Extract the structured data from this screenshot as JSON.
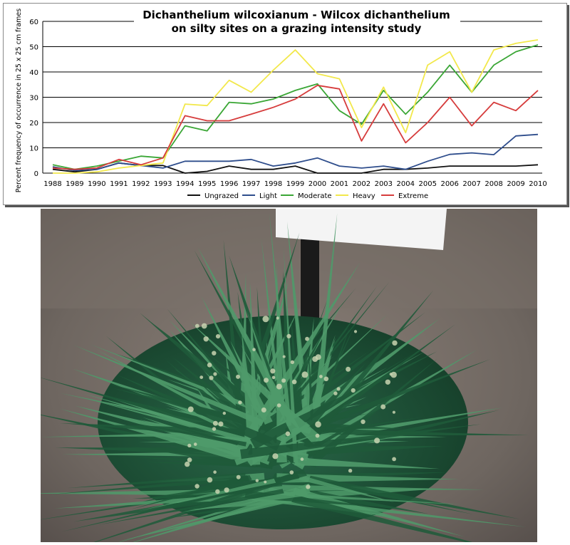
{
  "chart_data": {
    "type": "line",
    "title": "Dichanthelium wilcoxianum  -  Wilcox dichanthelium",
    "subtitle": "on silty sites on a grazing intensity study",
    "xlabel": "",
    "ylabel": "Percent frequency of occurrence in 25 x 25 cm frames",
    "ylim": [
      0,
      60
    ],
    "yticks": [
      0,
      10,
      20,
      30,
      40,
      50,
      60
    ],
    "grid": "horizontal",
    "legend_position": "bottom",
    "x": [
      "1988",
      "1989",
      "1990",
      "1991",
      "1992",
      "1993",
      "1994",
      "1995",
      "1996",
      "1997",
      "1998",
      "1999",
      "2000",
      "2001",
      "2002",
      "2003",
      "2004",
      "2005",
      "2006",
      "2007",
      "2008",
      "2009",
      "2010"
    ],
    "series": [
      {
        "name": "Ungrazed",
        "color": "#111111",
        "values": [
          1.5,
          0.5,
          1.5,
          4.0,
          3.0,
          3.0,
          0.0,
          0.7,
          2.8,
          1.5,
          1.5,
          2.8,
          0.0,
          0.0,
          0.0,
          1.5,
          1.5,
          2.0,
          2.8,
          2.8,
          2.8,
          2.8,
          3.3
        ]
      },
      {
        "name": "Light",
        "color": "#2e4d8c",
        "values": [
          2.5,
          1.0,
          1.5,
          4.0,
          3.0,
          2.0,
          4.7,
          4.7,
          4.7,
          5.4,
          2.8,
          4.0,
          6.0,
          2.8,
          2.0,
          2.8,
          1.5,
          4.7,
          7.4,
          8.0,
          7.3,
          14.7,
          15.3
        ]
      },
      {
        "name": "Moderate",
        "color": "#3aa635",
        "values": [
          3.3,
          1.5,
          2.8,
          4.7,
          6.7,
          6.0,
          18.7,
          16.7,
          28.0,
          27.4,
          29.3,
          32.7,
          35.3,
          24.7,
          19.3,
          32.7,
          23.3,
          32.0,
          42.7,
          32.0,
          42.7,
          48.0,
          50.7
        ]
      },
      {
        "name": "Heavy",
        "color": "#f2e84b",
        "values": [
          0.0,
          0.0,
          0.5,
          2.0,
          3.0,
          4.0,
          27.3,
          26.7,
          36.7,
          32.0,
          40.7,
          48.7,
          39.3,
          37.3,
          18.0,
          34.0,
          16.0,
          42.7,
          48.0,
          32.0,
          48.7,
          51.3,
          52.7
        ]
      },
      {
        "name": "Extreme",
        "color": "#d63c3c",
        "values": [
          2.0,
          1.5,
          2.0,
          5.4,
          3.3,
          6.0,
          22.7,
          20.7,
          20.7,
          23.3,
          26.0,
          29.3,
          34.7,
          33.3,
          12.7,
          27.4,
          12.0,
          20.0,
          30.0,
          18.7,
          28.0,
          24.7,
          32.7
        ]
      }
    ]
  },
  "photo": {
    "sign_color": "#ffffff",
    "post_color": "#1a1a1a",
    "soil_color": "#6e6660",
    "grass_dark": "#1f5a3a",
    "grass_light": "#4f9a6a"
  }
}
